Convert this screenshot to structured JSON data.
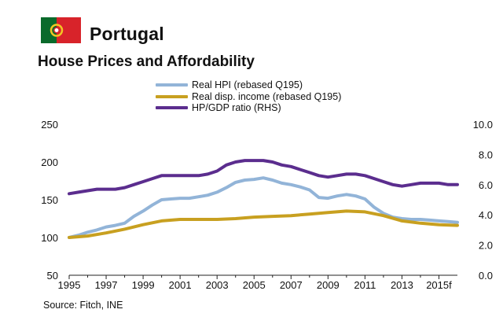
{
  "header": {
    "country": "Portugal",
    "title": "House Prices and Affordability"
  },
  "source": "Source: Fitch, INE",
  "colors": {
    "flag_green": "#0a6a2b",
    "flag_red": "#d8232a",
    "flag_emblem": "#f3c623"
  },
  "chart_data": {
    "type": "line",
    "title": "House Prices and Affordability",
    "legend_position": "top-center",
    "grid": false,
    "x_ticks": [
      "1995",
      "1997",
      "1999",
      "2001",
      "2003",
      "2005",
      "2007",
      "2009",
      "2011",
      "2013",
      "2015f"
    ],
    "xlim": [
      1995,
      2016
    ],
    "y_left": {
      "ylim": [
        50,
        250
      ],
      "ticks": [
        "50",
        "100",
        "150",
        "200",
        "250"
      ]
    },
    "y_right": {
      "ylim": [
        0,
        10
      ],
      "ticks": [
        "0.0",
        "2.0",
        "4.0",
        "6.0",
        "8.0",
        "10.0"
      ]
    },
    "series": [
      {
        "name": "Real HPI (rebased Q195)",
        "axis": "left",
        "color": "#92b4d8",
        "points": [
          [
            1995,
            100
          ],
          [
            1995.5,
            103
          ],
          [
            1996,
            107
          ],
          [
            1996.5,
            110
          ],
          [
            1997,
            114
          ],
          [
            1997.5,
            116
          ],
          [
            1998,
            119
          ],
          [
            1998.5,
            128
          ],
          [
            1999,
            135
          ],
          [
            1999.5,
            143
          ],
          [
            2000,
            150
          ],
          [
            2000.5,
            151
          ],
          [
            2001,
            152
          ],
          [
            2001.5,
            152
          ],
          [
            2002,
            154
          ],
          [
            2002.5,
            156
          ],
          [
            2003,
            160
          ],
          [
            2003.5,
            166
          ],
          [
            2004,
            173
          ],
          [
            2004.5,
            176
          ],
          [
            2005,
            177
          ],
          [
            2005.5,
            179
          ],
          [
            2006,
            176
          ],
          [
            2006.5,
            172
          ],
          [
            2007,
            170
          ],
          [
            2007.5,
            167
          ],
          [
            2008,
            163
          ],
          [
            2008.5,
            153
          ],
          [
            2009,
            152
          ],
          [
            2009.5,
            155
          ],
          [
            2010,
            157
          ],
          [
            2010.5,
            155
          ],
          [
            2011,
            151
          ],
          [
            2011.5,
            140
          ],
          [
            2012,
            132
          ],
          [
            2012.5,
            127
          ],
          [
            2013,
            125
          ],
          [
            2013.5,
            124
          ],
          [
            2014,
            124
          ],
          [
            2014.5,
            123
          ],
          [
            2015,
            122
          ],
          [
            2015.5,
            121
          ],
          [
            2016,
            120
          ]
        ]
      },
      {
        "name": "Real disp. income (rebased Q195)",
        "axis": "left",
        "color": "#c8a020",
        "points": [
          [
            1995,
            100
          ],
          [
            1996,
            102
          ],
          [
            1997,
            106
          ],
          [
            1998,
            111
          ],
          [
            1999,
            117
          ],
          [
            2000,
            122
          ],
          [
            2001,
            124
          ],
          [
            2002,
            124
          ],
          [
            2003,
            124
          ],
          [
            2004,
            125
          ],
          [
            2005,
            127
          ],
          [
            2006,
            128
          ],
          [
            2007,
            129
          ],
          [
            2008,
            131
          ],
          [
            2009,
            133
          ],
          [
            2010,
            135
          ],
          [
            2011,
            134
          ],
          [
            2012,
            129
          ],
          [
            2013,
            122
          ],
          [
            2014,
            119
          ],
          [
            2015,
            117
          ],
          [
            2016,
            116
          ]
        ]
      },
      {
        "name": "HP/GDP ratio (RHS)",
        "axis": "right",
        "color": "#5b2d8e",
        "points": [
          [
            1995,
            5.4
          ],
          [
            1995.5,
            5.5
          ],
          [
            1996,
            5.6
          ],
          [
            1996.5,
            5.7
          ],
          [
            1997,
            5.7
          ],
          [
            1997.5,
            5.7
          ],
          [
            1998,
            5.8
          ],
          [
            1998.5,
            6.0
          ],
          [
            1999,
            6.2
          ],
          [
            1999.5,
            6.4
          ],
          [
            2000,
            6.6
          ],
          [
            2000.5,
            6.6
          ],
          [
            2001,
            6.6
          ],
          [
            2001.5,
            6.6
          ],
          [
            2002,
            6.6
          ],
          [
            2002.5,
            6.7
          ],
          [
            2003,
            6.9
          ],
          [
            2003.5,
            7.3
          ],
          [
            2004,
            7.5
          ],
          [
            2004.5,
            7.6
          ],
          [
            2005,
            7.6
          ],
          [
            2005.5,
            7.6
          ],
          [
            2006,
            7.5
          ],
          [
            2006.5,
            7.3
          ],
          [
            2007,
            7.2
          ],
          [
            2007.5,
            7.0
          ],
          [
            2008,
            6.8
          ],
          [
            2008.5,
            6.6
          ],
          [
            2009,
            6.5
          ],
          [
            2009.5,
            6.6
          ],
          [
            2010,
            6.7
          ],
          [
            2010.5,
            6.7
          ],
          [
            2011,
            6.6
          ],
          [
            2011.5,
            6.4
          ],
          [
            2012,
            6.2
          ],
          [
            2012.5,
            6.0
          ],
          [
            2013,
            5.9
          ],
          [
            2013.5,
            6.0
          ],
          [
            2014,
            6.1
          ],
          [
            2014.5,
            6.1
          ],
          [
            2015,
            6.1
          ],
          [
            2015.5,
            6.0
          ],
          [
            2016,
            6.0
          ]
        ]
      }
    ]
  }
}
